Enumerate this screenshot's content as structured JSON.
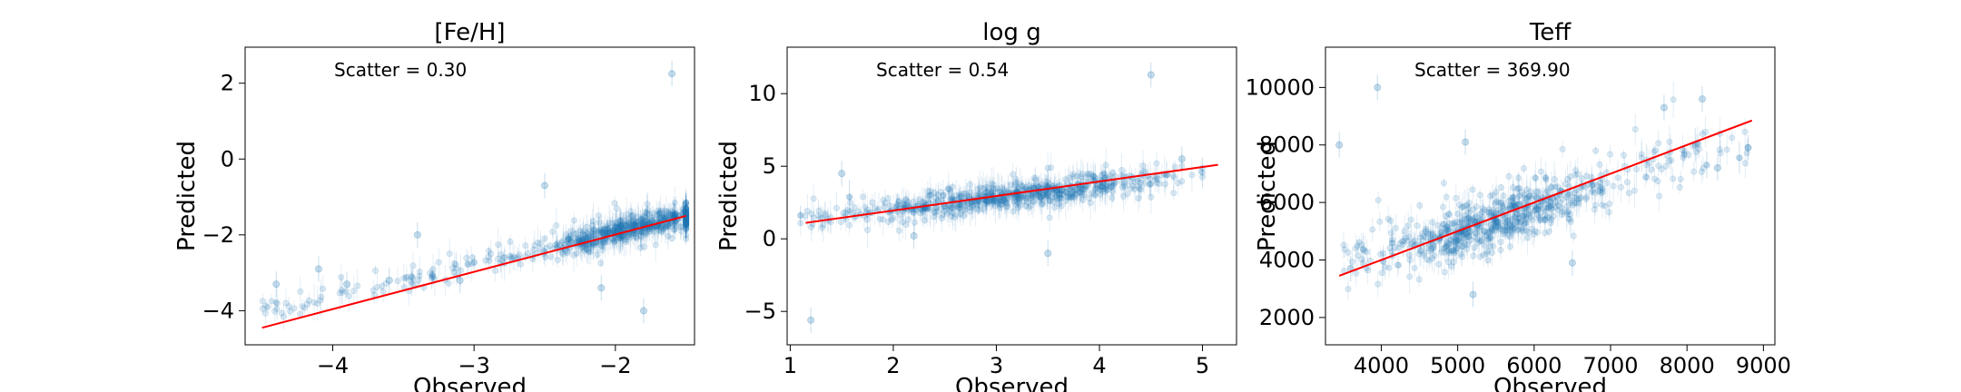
{
  "chart_data": [
    {
      "type": "scatter",
      "title": "[Fe/H]",
      "xlabel": "Observed",
      "ylabel": "Predicted",
      "xlim": [
        -4.62,
        -1.44
      ],
      "ylim": [
        -4.9,
        2.95
      ],
      "xticks": [
        -4,
        -3,
        -2
      ],
      "yticks": [
        -4,
        -2,
        0,
        2
      ],
      "annotation": "Scatter = 0.30",
      "fit_line": {
        "x": [
          -4.5,
          -1.5
        ],
        "y": [
          -4.45,
          -1.5
        ]
      },
      "cloud": {
        "x_min": -4.5,
        "x_max": -1.5,
        "center_x": -1.85,
        "center_y": -1.82,
        "spread_x": 0.35,
        "spread_y": 0.18
      },
      "outliers": [
        {
          "x": -1.6,
          "y": 2.25
        },
        {
          "x": -4.4,
          "y": -3.3
        },
        {
          "x": -4.1,
          "y": -2.9
        },
        {
          "x": -3.6,
          "y": -3.2
        },
        {
          "x": -3.4,
          "y": -2.0
        },
        {
          "x": -2.1,
          "y": -3.4
        },
        {
          "x": -1.8,
          "y": -4.0
        },
        {
          "x": -2.5,
          "y": -0.7
        },
        {
          "x": -3.9,
          "y": -3.3
        },
        {
          "x": -3.1,
          "y": -3.2
        }
      ],
      "color": "#1f77b4",
      "fit_color": "#ff0000"
    },
    {
      "type": "scatter",
      "title": "log g",
      "xlabel": "Observed",
      "ylabel": "Predicted",
      "xlim": [
        0.97,
        5.33
      ],
      "ylim": [
        -7.3,
        13.2
      ],
      "xticks": [
        1,
        2,
        3,
        4,
        5
      ],
      "yticks": [
        -5,
        0,
        5,
        10
      ],
      "annotation": "Scatter = 0.54",
      "fit_line": {
        "x": [
          1.15,
          5.15
        ],
        "y": [
          1.1,
          5.1
        ]
      },
      "cloud": {
        "x_min": 1.1,
        "x_max": 5.0,
        "center_x": 3.2,
        "center_y": 3.0,
        "spread_x": 0.75,
        "spread_y": 0.45
      },
      "outliers": [
        {
          "x": 4.5,
          "y": 11.3
        },
        {
          "x": 1.2,
          "y": -5.6
        },
        {
          "x": 3.5,
          "y": -1.0
        },
        {
          "x": 1.5,
          "y": 4.5
        },
        {
          "x": 4.8,
          "y": 5.5
        },
        {
          "x": 2.2,
          "y": 0.2
        }
      ],
      "color": "#1f77b4",
      "fit_color": "#ff0000"
    },
    {
      "type": "scatter",
      "title": "Teff",
      "xlabel": "Observed",
      "ylabel": "Predicted",
      "xlim": [
        3270,
        9150
      ],
      "ylim": [
        1050,
        11400
      ],
      "xticks": [
        4000,
        5000,
        6000,
        7000,
        8000,
        9000
      ],
      "yticks": [
        2000,
        4000,
        6000,
        8000,
        10000
      ],
      "annotation": "Scatter = 369.90",
      "fit_line": {
        "x": [
          3450,
          8850
        ],
        "y": [
          3450,
          8850
        ]
      },
      "cloud": {
        "x_min": 3500,
        "x_max": 8800,
        "center_x": 5500,
        "center_y": 5400,
        "spread_x": 700,
        "spread_y": 500
      },
      "outliers": [
        {
          "x": 3950,
          "y": 10000
        },
        {
          "x": 3450,
          "y": 8000
        },
        {
          "x": 5200,
          "y": 2800
        },
        {
          "x": 8200,
          "y": 9600
        },
        {
          "x": 8800,
          "y": 7900
        },
        {
          "x": 3600,
          "y": 3700
        },
        {
          "x": 5100,
          "y": 8100
        },
        {
          "x": 6500,
          "y": 3900
        },
        {
          "x": 7700,
          "y": 9300
        },
        {
          "x": 8400,
          "y": 7200
        }
      ],
      "color": "#1f77b4",
      "fit_color": "#ff0000"
    }
  ]
}
